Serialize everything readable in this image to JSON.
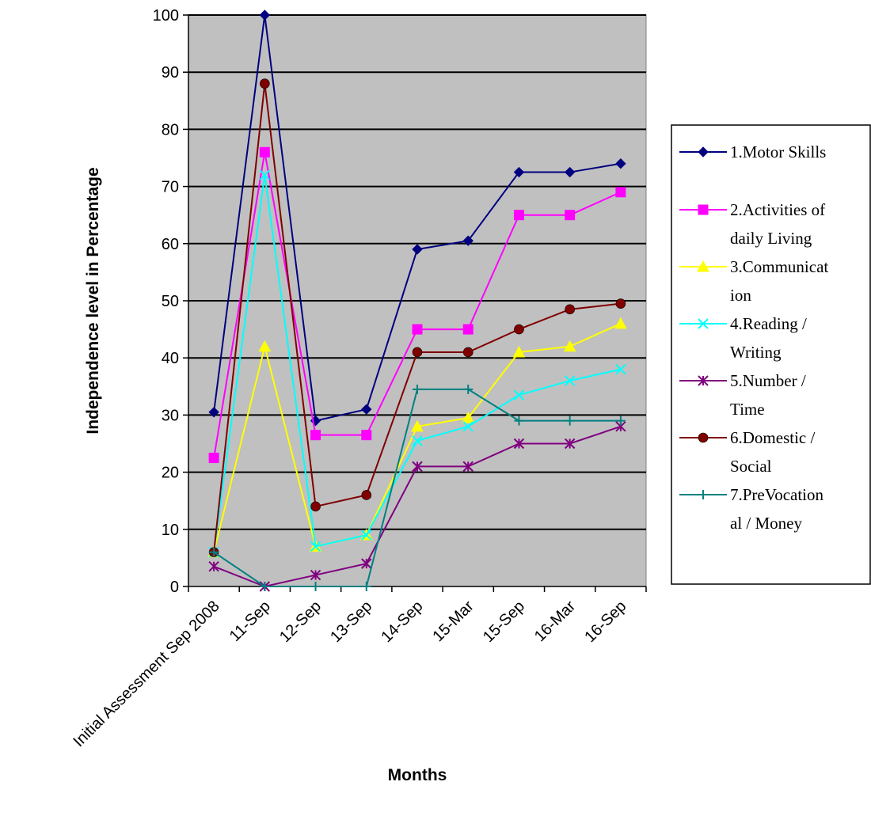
{
  "chart_data": {
    "type": "line",
    "title": "",
    "xlabel": "Months",
    "ylabel": "Independence level in Percentage",
    "ylim": [
      0,
      100
    ],
    "yticks": [
      0,
      10,
      20,
      30,
      40,
      50,
      60,
      70,
      80,
      90,
      100
    ],
    "grid": true,
    "legend_position": "right",
    "plot_background": "#c0c0c0",
    "categories": [
      "Initial Assessment Sep 2008",
      "11-Sep",
      "12-Sep",
      "13-Sep",
      "14-Sep",
      "15-Mar",
      "15-Sep",
      "16-Mar",
      "16-Sep"
    ],
    "series": [
      {
        "name": "1.Motor Skills",
        "legend_lines": [
          "1.Motor Skills"
        ],
        "color": "#000080",
        "marker": "diamond",
        "values": [
          30.5,
          100,
          29,
          31,
          59,
          60.5,
          72.5,
          72.5,
          74
        ]
      },
      {
        "name": "2.Activities of daily Living",
        "legend_lines": [
          "2.Activities of",
          "daily Living"
        ],
        "color": "#ff00ff",
        "marker": "square",
        "values": [
          22.5,
          76,
          26.5,
          26.5,
          45,
          45,
          65,
          65,
          69
        ]
      },
      {
        "name": "3.Communication",
        "legend_lines": [
          "3.Communicat",
          "ion"
        ],
        "color": "#ffff00",
        "marker": "triangle",
        "values": [
          6,
          42,
          7,
          9,
          28,
          29.5,
          41,
          42,
          46
        ]
      },
      {
        "name": "4.Reading / Writing",
        "legend_lines": [
          "4.Reading /",
          "Writing"
        ],
        "color": "#00ffff",
        "marker": "x",
        "values": [
          6,
          72,
          7,
          9,
          25.5,
          28,
          33.5,
          36,
          38
        ]
      },
      {
        "name": "5.Number / Time",
        "legend_lines": [
          "5.Number /",
          "Time"
        ],
        "color": "#800080",
        "marker": "star",
        "values": [
          3.5,
          0,
          2,
          4,
          21,
          21,
          25,
          25,
          28
        ]
      },
      {
        "name": "6.Domestic / Social",
        "legend_lines": [
          "6.Domestic /",
          "Social"
        ],
        "color": "#800000",
        "marker": "circle",
        "values": [
          6,
          88,
          14,
          16,
          41,
          41,
          45,
          48.5,
          49.5
        ]
      },
      {
        "name": "7.PreVocational / Money",
        "legend_lines": [
          "7.PreVocation",
          "al / Money"
        ],
        "color": "#008080",
        "marker": "plus",
        "values": [
          6,
          0,
          0,
          0,
          34.5,
          34.5,
          29,
          29,
          29
        ]
      }
    ]
  }
}
